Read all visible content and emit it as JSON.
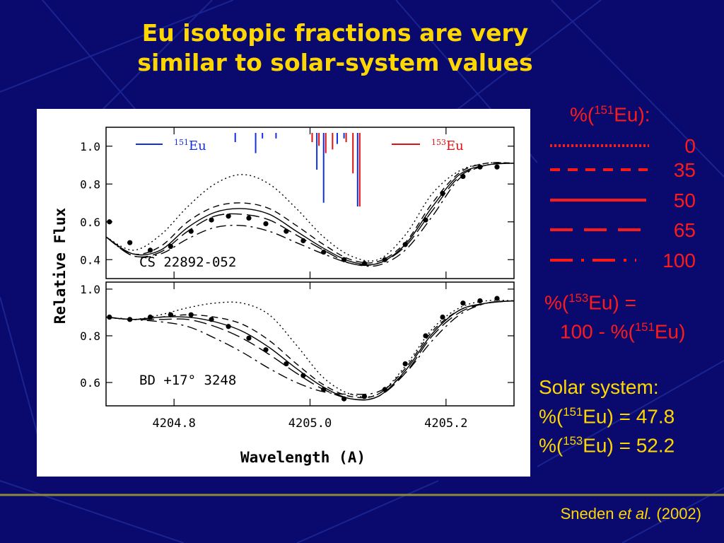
{
  "slide": {
    "title_line1": "Eu isotopic fractions are very",
    "title_line2": "similar to solar-system values",
    "colors": {
      "background": "#0a0a6e",
      "title": "#ffd700",
      "legend": "#ff1a1a",
      "eu151_marker": "#1030e0",
      "eu153_marker": "#e01010"
    }
  },
  "legend": {
    "header_prefix": "%(",
    "header_isotope": "151",
    "header_suffix": "Eu):",
    "entries": [
      {
        "style": "dotted",
        "label": "0"
      },
      {
        "style": "short-dashed",
        "label": "35"
      },
      {
        "style": "solid",
        "label": "50"
      },
      {
        "style": "long-dashed",
        "label": "65"
      },
      {
        "style": "dash-dot",
        "label": "100"
      }
    ]
  },
  "note": {
    "line1_prefix": "%(",
    "line1_iso": "153",
    "line1_suffix": "Eu) =",
    "line2_prefix": "100 - %(",
    "line2_iso": "151",
    "line2_suffix": "Eu)"
  },
  "solar": {
    "heading": "Solar system:",
    "line1_prefix": "%(",
    "line1_iso": "151",
    "line1_suffix": "Eu) = 47.8",
    "line2_prefix": "%(",
    "line2_iso": "153",
    "line2_suffix": "Eu) = 52.2"
  },
  "citation": {
    "author": "Sneden ",
    "etal": "et al.",
    "year": " (2002)"
  },
  "chart_data": {
    "type": "line",
    "xlabel": "Wavelength (A)",
    "ylabel": "Relative Flux",
    "xlim": [
      4204.7,
      4205.3
    ],
    "x_ticks": [
      4204.8,
      4205.0,
      4205.2
    ],
    "x_tick_labels": [
      "4204.8",
      "4205.0",
      "4205.2"
    ],
    "marker_labels": {
      "eu151_iso": "151",
      "eu151_el": "Eu",
      "eu153_iso": "153",
      "eu153_el": "Eu"
    },
    "eu151_lines": [
      {
        "x": 4204.89,
        "h": 0.25
      },
      {
        "x": 4204.92,
        "h": 0.55
      },
      {
        "x": 4204.93,
        "h": 0.15
      },
      {
        "x": 4204.95,
        "h": 0.15
      },
      {
        "x": 4205.01,
        "h": 1.0
      },
      {
        "x": 4205.02,
        "h": 1.9
      },
      {
        "x": 4205.04,
        "h": 0.3
      },
      {
        "x": 4205.05,
        "h": 0.15
      },
      {
        "x": 4205.07,
        "h": 2.0
      }
    ],
    "eu153_lines": [
      {
        "x": 4205.0,
        "h": 0.25
      },
      {
        "x": 4205.01,
        "h": 0.35
      },
      {
        "x": 4205.02,
        "h": 0.55
      },
      {
        "x": 4205.03,
        "h": 0.45
      },
      {
        "x": 4205.05,
        "h": 0.25
      },
      {
        "x": 4205.06,
        "h": 1.1
      },
      {
        "x": 4205.07,
        "h": 2.0
      }
    ],
    "panels": [
      {
        "star": "CS 22892-052",
        "ylim": [
          0.3,
          1.1
        ],
        "y_ticks": [
          0.4,
          0.6,
          0.8,
          1.0
        ],
        "y_tick_labels": [
          "0.4",
          "0.6",
          "0.8",
          "1.0"
        ],
        "observed": {
          "x": [
            4204.705,
            4204.735,
            4204.765,
            4204.795,
            4204.825,
            4204.855,
            4204.88,
            4204.91,
            4204.935,
            4204.965,
            4204.99,
            4205.02,
            4205.05,
            4205.08,
            4205.11,
            4205.14,
            4205.17,
            4205.195,
            4205.225,
            4205.25,
            4205.275
          ],
          "y": [
            0.6,
            0.49,
            0.45,
            0.47,
            0.55,
            0.61,
            0.63,
            0.62,
            0.59,
            0.55,
            0.5,
            0.44,
            0.4,
            0.38,
            0.4,
            0.48,
            0.61,
            0.75,
            0.84,
            0.89,
            0.89
          ]
        },
        "models": [
          {
            "style": "dotted",
            "x": [
              4204.7,
              4204.74,
              4204.78,
              4204.82,
              4204.86,
              4204.9,
              4204.94,
              4204.98,
              4205.02,
              4205.06,
              4205.1,
              4205.14,
              4205.18,
              4205.22,
              4205.26,
              4205.3
            ],
            "y": [
              0.52,
              0.45,
              0.53,
              0.68,
              0.8,
              0.85,
              0.8,
              0.67,
              0.52,
              0.42,
              0.4,
              0.53,
              0.75,
              0.87,
              0.91,
              0.91
            ]
          },
          {
            "style": "short-dashed",
            "x": [
              4204.7,
              4204.74,
              4204.78,
              4204.82,
              4204.86,
              4204.9,
              4204.94,
              4204.98,
              4205.02,
              4205.06,
              4205.1,
              4205.14,
              4205.18,
              4205.22,
              4205.26,
              4205.3
            ],
            "y": [
              0.52,
              0.43,
              0.47,
              0.6,
              0.68,
              0.7,
              0.67,
              0.58,
              0.48,
              0.4,
              0.39,
              0.49,
              0.7,
              0.86,
              0.91,
              0.91
            ]
          },
          {
            "style": "solid",
            "x": [
              4204.7,
              4204.74,
              4204.78,
              4204.82,
              4204.86,
              4204.9,
              4204.94,
              4204.98,
              4205.02,
              4205.06,
              4205.1,
              4205.14,
              4205.18,
              4205.22,
              4205.26,
              4205.3
            ],
            "y": [
              0.52,
              0.43,
              0.45,
              0.57,
              0.65,
              0.67,
              0.64,
              0.55,
              0.46,
              0.39,
              0.38,
              0.48,
              0.68,
              0.85,
              0.9,
              0.91
            ]
          },
          {
            "style": "long-dashed",
            "x": [
              4204.7,
              4204.74,
              4204.78,
              4204.82,
              4204.86,
              4204.9,
              4204.94,
              4204.98,
              4205.02,
              4205.06,
              4205.1,
              4205.14,
              4205.18,
              4205.22,
              4205.26,
              4205.3
            ],
            "y": [
              0.52,
              0.42,
              0.44,
              0.55,
              0.63,
              0.64,
              0.61,
              0.53,
              0.45,
              0.38,
              0.38,
              0.47,
              0.66,
              0.84,
              0.9,
              0.91
            ]
          },
          {
            "style": "dash-dot",
            "x": [
              4204.7,
              4204.74,
              4204.78,
              4204.82,
              4204.86,
              4204.9,
              4204.94,
              4204.98,
              4205.02,
              4205.06,
              4205.1,
              4205.14,
              4205.18,
              4205.22,
              4205.26,
              4205.3
            ],
            "y": [
              0.52,
              0.42,
              0.43,
              0.51,
              0.57,
              0.58,
              0.55,
              0.49,
              0.43,
              0.38,
              0.37,
              0.45,
              0.63,
              0.83,
              0.9,
              0.91
            ]
          }
        ]
      },
      {
        "star": "BD +17° 3248",
        "ylim": [
          0.5,
          1.03
        ],
        "y_ticks": [
          0.6,
          0.8,
          1.0
        ],
        "y_tick_labels": [
          "0.6",
          "0.8",
          "1.0"
        ],
        "observed": {
          "x": [
            4204.705,
            4204.735,
            4204.765,
            4204.795,
            4204.825,
            4204.855,
            4204.88,
            4204.91,
            4204.935,
            4204.965,
            4204.99,
            4205.02,
            4205.05,
            4205.08,
            4205.11,
            4205.14,
            4205.17,
            4205.195,
            4205.225,
            4205.25,
            4205.275
          ],
          "y": [
            0.88,
            0.87,
            0.88,
            0.89,
            0.89,
            0.87,
            0.84,
            0.79,
            0.74,
            0.68,
            0.63,
            0.57,
            0.53,
            0.54,
            0.57,
            0.68,
            0.8,
            0.88,
            0.94,
            0.95,
            0.96
          ]
        },
        "models": [
          {
            "style": "dotted",
            "x": [
              4204.7,
              4204.74,
              4204.78,
              4204.82,
              4204.86,
              4204.9,
              4204.94,
              4204.98,
              4205.02,
              4205.06,
              4205.1,
              4205.14,
              4205.18,
              4205.22,
              4205.26,
              4205.3
            ],
            "y": [
              0.88,
              0.87,
              0.89,
              0.92,
              0.94,
              0.94,
              0.89,
              0.76,
              0.62,
              0.55,
              0.55,
              0.67,
              0.83,
              0.92,
              0.95,
              0.95
            ]
          },
          {
            "style": "short-dashed",
            "x": [
              4204.7,
              4204.74,
              4204.78,
              4204.82,
              4204.86,
              4204.9,
              4204.94,
              4204.98,
              4205.02,
              4205.06,
              4205.1,
              4205.14,
              4205.18,
              4205.22,
              4205.26,
              4205.3
            ],
            "y": [
              0.88,
              0.87,
              0.88,
              0.89,
              0.88,
              0.85,
              0.78,
              0.68,
              0.59,
              0.54,
              0.55,
              0.66,
              0.82,
              0.91,
              0.94,
              0.95
            ]
          },
          {
            "style": "solid",
            "x": [
              4204.7,
              4204.74,
              4204.78,
              4204.82,
              4204.86,
              4204.9,
              4204.94,
              4204.98,
              4205.02,
              4205.06,
              4205.1,
              4205.14,
              4205.18,
              4205.22,
              4205.26,
              4205.3
            ],
            "y": [
              0.88,
              0.87,
              0.88,
              0.88,
              0.86,
              0.82,
              0.75,
              0.66,
              0.58,
              0.53,
              0.54,
              0.65,
              0.81,
              0.91,
              0.94,
              0.95
            ]
          },
          {
            "style": "long-dashed",
            "x": [
              4204.7,
              4204.74,
              4204.78,
              4204.82,
              4204.86,
              4204.9,
              4204.94,
              4204.98,
              4205.02,
              4205.06,
              4205.1,
              4205.14,
              4205.18,
              4205.22,
              4205.26,
              4205.3
            ],
            "y": [
              0.88,
              0.87,
              0.87,
              0.87,
              0.84,
              0.79,
              0.72,
              0.64,
              0.57,
              0.53,
              0.54,
              0.64,
              0.8,
              0.9,
              0.94,
              0.95
            ]
          },
          {
            "style": "dash-dot",
            "x": [
              4204.7,
              4204.74,
              4204.78,
              4204.82,
              4204.86,
              4204.9,
              4204.94,
              4204.98,
              4205.02,
              4205.06,
              4205.1,
              4205.14,
              4205.18,
              4205.22,
              4205.26,
              4205.3
            ],
            "y": [
              0.88,
              0.87,
              0.86,
              0.84,
              0.79,
              0.73,
              0.66,
              0.6,
              0.56,
              0.55,
              0.56,
              0.64,
              0.78,
              0.89,
              0.94,
              0.95
            ]
          }
        ]
      }
    ]
  }
}
